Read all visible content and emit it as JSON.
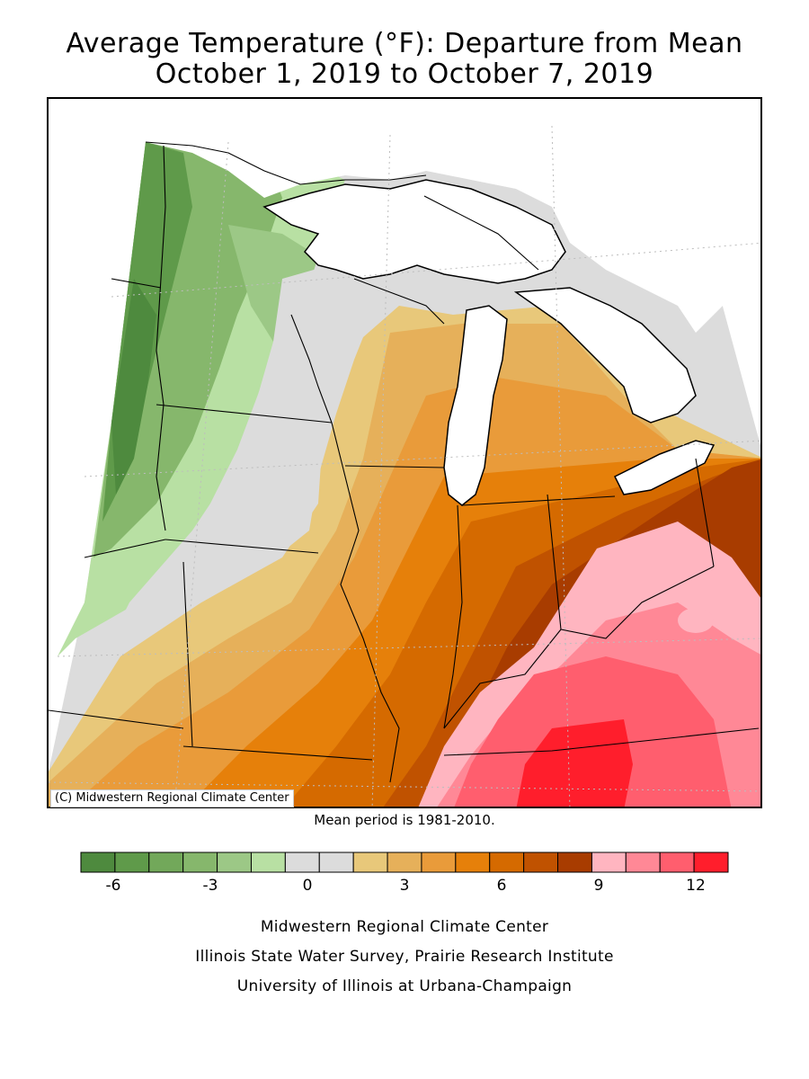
{
  "title_line1": "Average Temperature (°F): Departure from Mean",
  "title_line2": "October 1, 2019 to October 7, 2019",
  "credit": "(C) Midwestern Regional Climate Center",
  "mean_note": "Mean period is 1981-2010.",
  "legend": {
    "colors": [
      "#4e8a3e",
      "#5f9a4a",
      "#72a85a",
      "#86b76c",
      "#9cc886",
      "#b8e0a3",
      "#dcdcdc",
      "#dcdcdc",
      "#e8c87a",
      "#e6b05a",
      "#e99b3a",
      "#e6800a",
      "#d56a00",
      "#c05200",
      "#a83c00",
      "#ffb5c0",
      "#ff8896",
      "#ff5e6e",
      "#ff1e2c"
    ],
    "tick_labels": [
      "-6",
      "-3",
      "0",
      "3",
      "6",
      "9",
      "12"
    ],
    "tick_values": [
      -6,
      -3,
      0,
      3,
      6,
      9,
      12
    ],
    "min": -7,
    "max": 13
  },
  "colors": {
    "green_dark": "#4e8a3e",
    "green_mid": "#86b76c",
    "green_light": "#b8e0a3",
    "neutral": "#dcdcdc",
    "tan": "#e8c87a",
    "orange": "#e6800a",
    "orange_dark": "#c05200",
    "pink": "#ffb5c0",
    "red": "#ff1e2c",
    "lake": "#ffffff"
  },
  "footer": {
    "line1": "Midwestern Regional Climate Center",
    "line2": "Illinois State Water Survey, Prairie Research Institute",
    "line3": "University of Illinois at Urbana-Champaign"
  }
}
